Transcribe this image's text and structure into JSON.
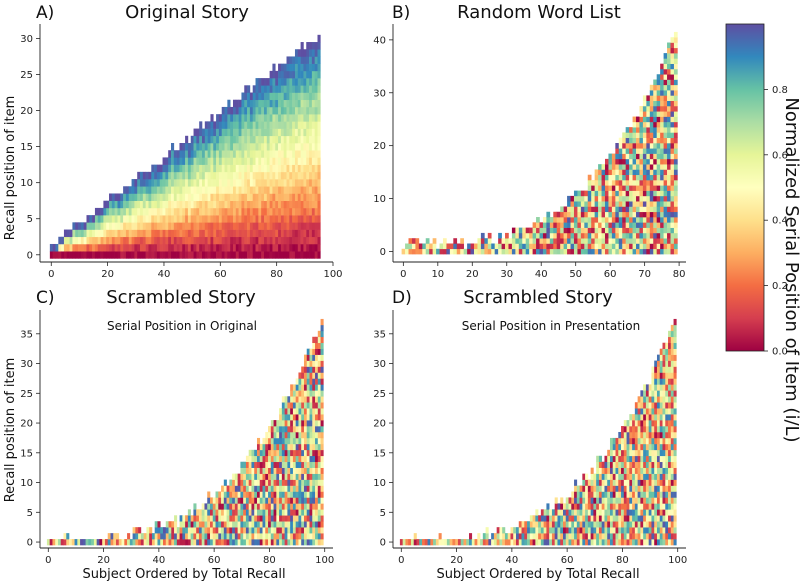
{
  "chart_data": [
    {
      "type": "heatmap",
      "panel_label": "A)",
      "title": "Original Story",
      "annotation": "",
      "xlabel": "",
      "ylabel": "Recall position of item",
      "xlim": [
        -4,
        100
      ],
      "ylim": [
        -1,
        32
      ],
      "xticks": [
        0,
        20,
        40,
        60,
        80,
        100
      ],
      "yticks": [
        0,
        5,
        10,
        15,
        20,
        25,
        30
      ],
      "n_subjects": 96,
      "recall_length": {
        "start": 2,
        "end": 31,
        "curve": "linear"
      },
      "color_pattern": "serial",
      "seed": 11
    },
    {
      "type": "heatmap",
      "panel_label": "B)",
      "title": "Random Word List",
      "annotation": "",
      "xlabel": "",
      "ylabel": "",
      "xlim": [
        -3,
        82
      ],
      "ylim": [
        -2,
        43
      ],
      "xticks": [
        0,
        10,
        20,
        30,
        40,
        50,
        60,
        70,
        80
      ],
      "yticks": [
        0,
        10,
        20,
        30,
        40
      ],
      "n_subjects": 80,
      "recall_length": {
        "start": 2,
        "end": 42,
        "curve": "convex"
      },
      "color_pattern": "random",
      "seed": 23
    },
    {
      "type": "heatmap",
      "panel_label": "C)",
      "title": "Scrambled Story",
      "annotation": "Serial Position in Original",
      "xlabel": "Subject Ordered by Total Recall",
      "ylabel": "Recall position of item",
      "xlim": [
        -3,
        103
      ],
      "ylim": [
        -1,
        39
      ],
      "xticks": [
        0,
        20,
        40,
        60,
        80,
        100
      ],
      "yticks": [
        0,
        5,
        10,
        15,
        20,
        25,
        30,
        35
      ],
      "n_subjects": 100,
      "recall_length": {
        "start": 1,
        "end": 38,
        "curve": "convex"
      },
      "color_pattern": "random",
      "seed": 37
    },
    {
      "type": "heatmap",
      "panel_label": "D)",
      "title": "Scrambled Story",
      "annotation": "Serial Position in Presentation",
      "xlabel": "Subject Ordered by Total Recall",
      "ylabel": "",
      "xlim": [
        -3,
        103
      ],
      "ylim": [
        -1,
        39
      ],
      "xticks": [
        0,
        20,
        40,
        60,
        80,
        100
      ],
      "yticks": [
        0,
        5,
        10,
        15,
        20,
        25,
        30,
        35
      ],
      "n_subjects": 100,
      "recall_length": {
        "start": 1,
        "end": 38,
        "curve": "convex"
      },
      "color_pattern": "random",
      "seed": 53
    }
  ],
  "colorbar": {
    "label": "Normalized Serial Position of Item (i/L)",
    "colormap": "Spectral",
    "range": [
      0,
      1
    ],
    "ticks": [
      "0.0",
      "0.2",
      "0.4",
      "0.6",
      "0.8"
    ],
    "stops": [
      "#9e0142",
      "#d53e4f",
      "#f46d43",
      "#fdae61",
      "#fee08b",
      "#ffffbf",
      "#e6f598",
      "#abdda4",
      "#66c2a5",
      "#3288bd",
      "#5e4fa2"
    ]
  }
}
